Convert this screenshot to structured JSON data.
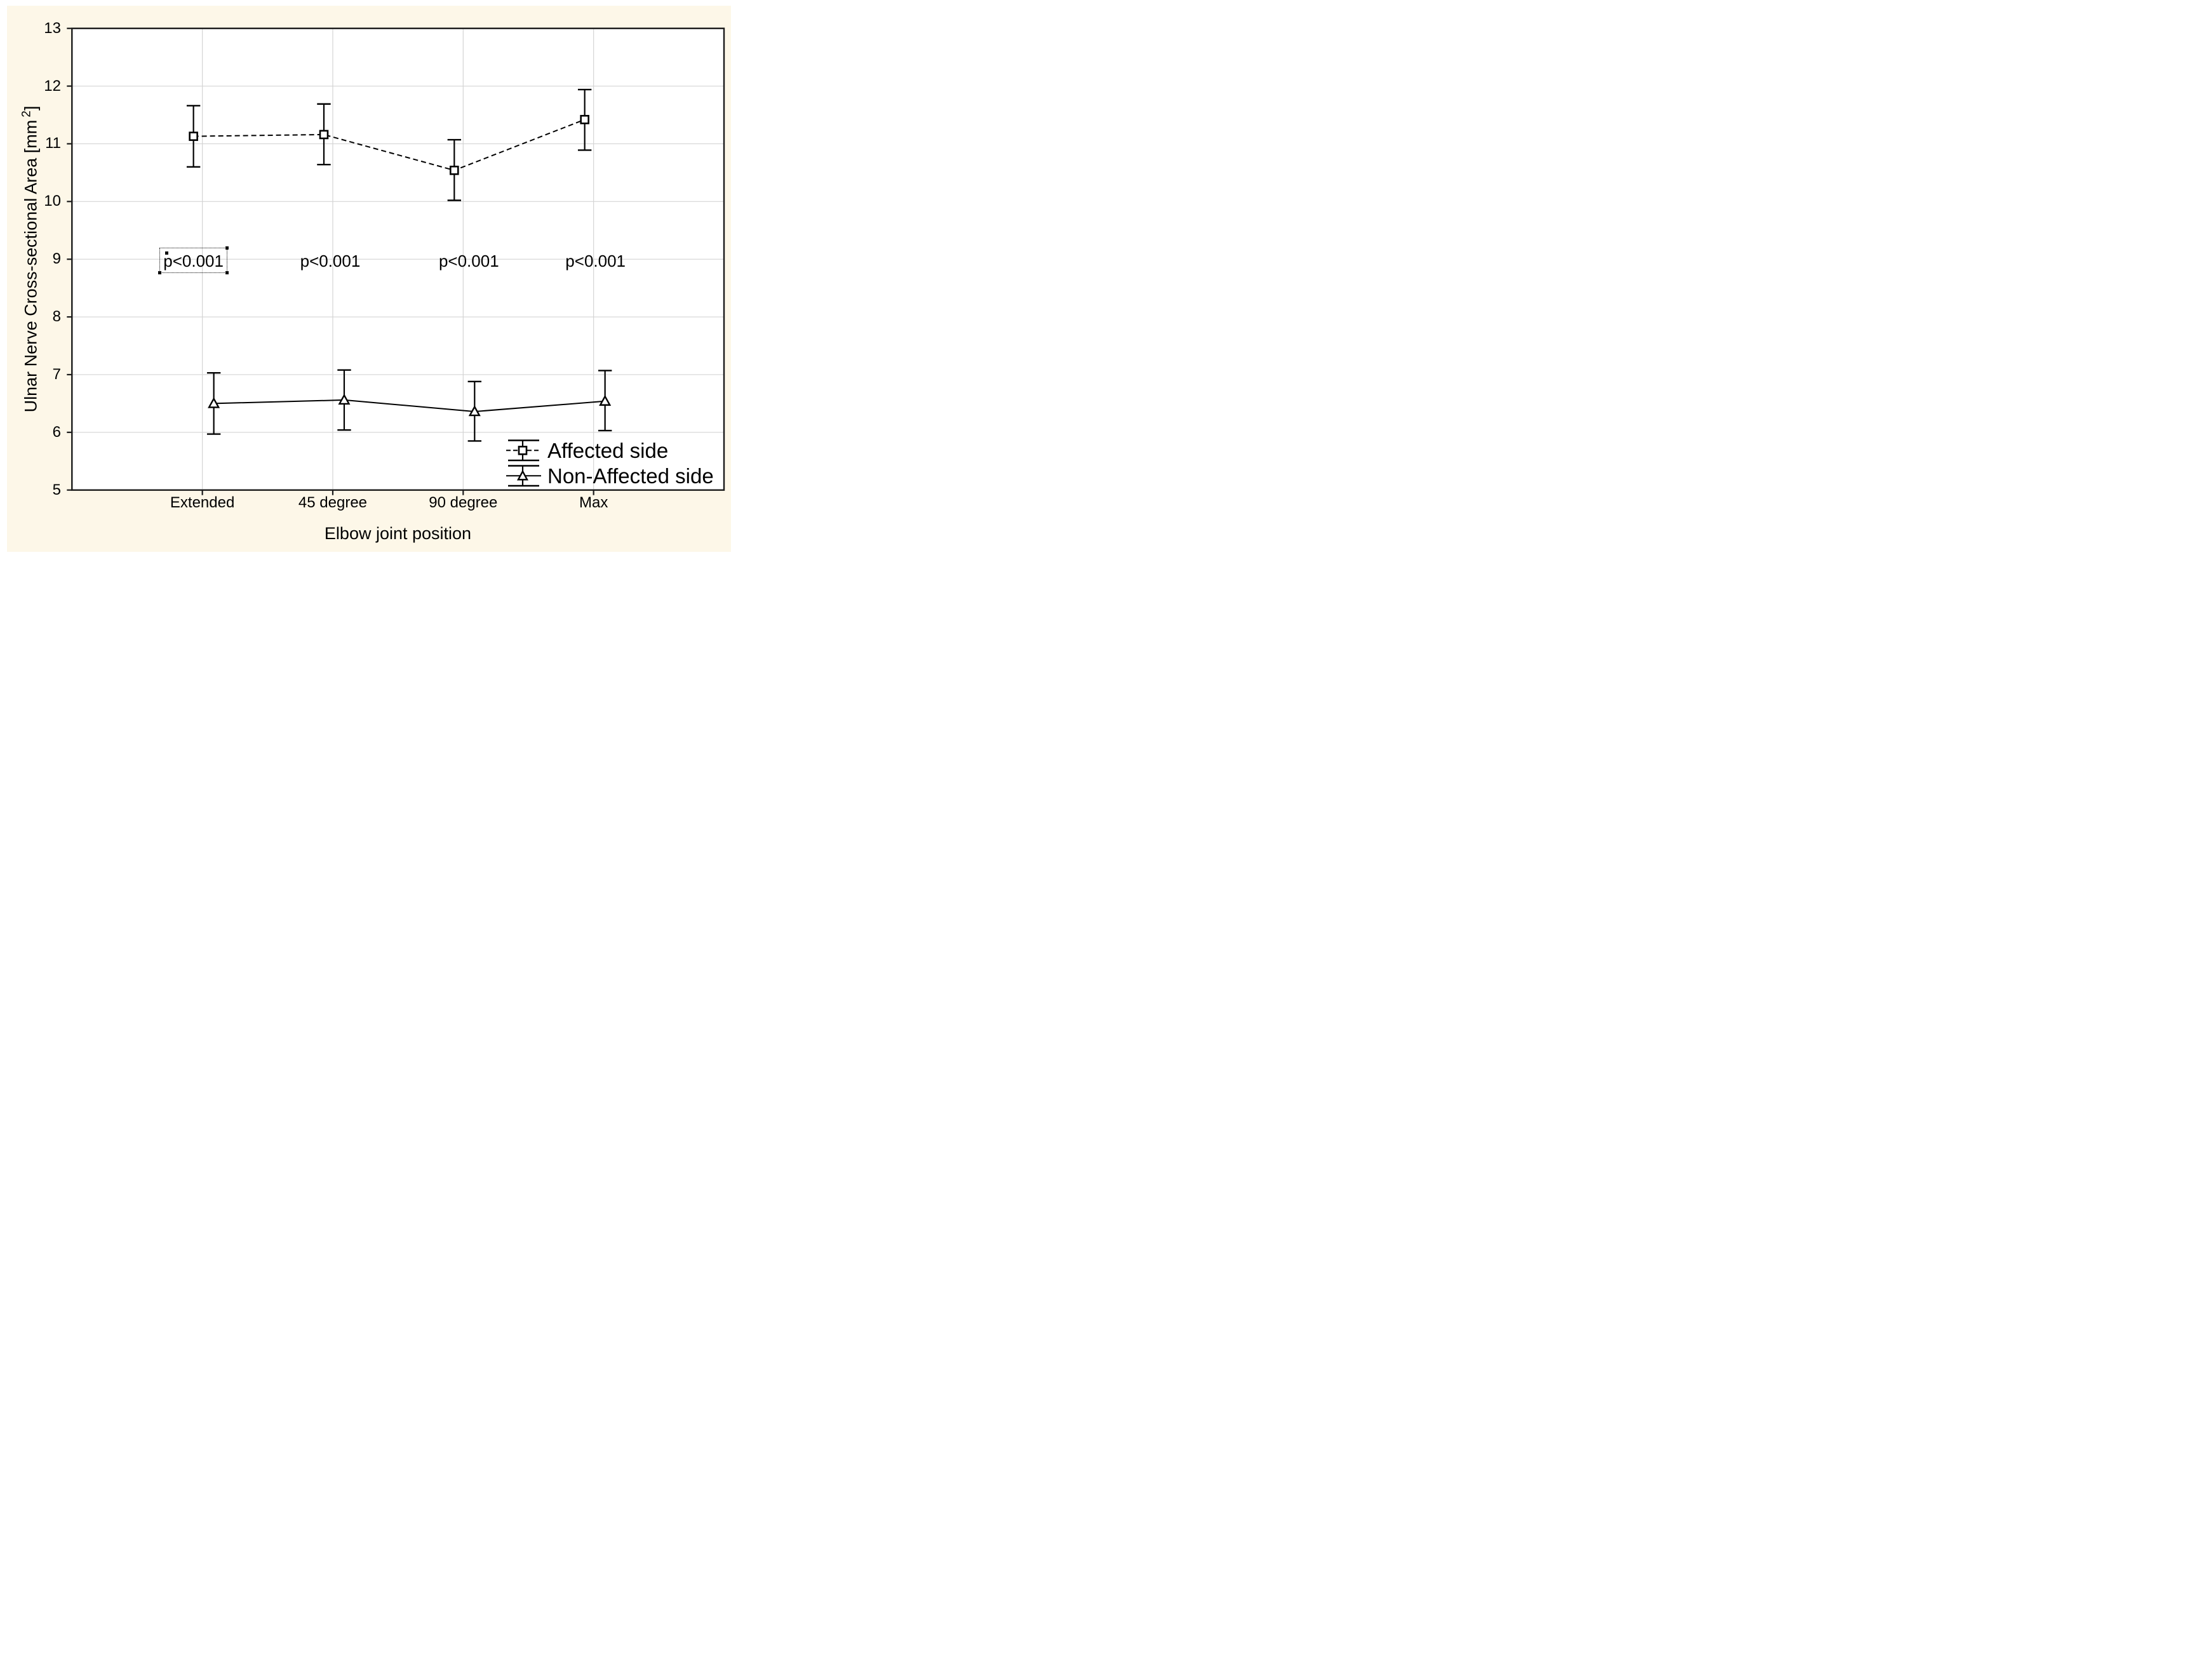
{
  "colors": {
    "page_background": "#ffffff",
    "paper_background": "#fdf7e8",
    "plot_background": "#ffffff",
    "grid": "#d4d4d4",
    "axis": "#1a1a1a",
    "text": "#000000"
  },
  "chart_data": {
    "type": "line",
    "title": "",
    "xlabel": "Elbow joint position",
    "ylabel": "Ulnar Nerve Cross-sectional Area [mm2]",
    "ylabel_prefix": "Ulnar Nerve Cross-sectional Area [mm",
    "ylabel_sup": "2",
    "ylabel_suffix": "]",
    "categories": [
      "Extended",
      "45 degree",
      "90 degree",
      "Max"
    ],
    "ylim": [
      5,
      13
    ],
    "yticks": [
      13,
      12,
      11,
      10,
      9,
      8,
      7,
      6,
      5
    ],
    "grid": true,
    "legend_position": "bottom-right-inside",
    "series": [
      {
        "name": "Affected side",
        "marker": "square",
        "line": "dashed",
        "values": [
          11.13,
          11.16,
          10.54,
          11.42
        ],
        "ci_low": [
          10.6,
          10.64,
          10.02,
          10.89
        ],
        "ci_high": [
          11.66,
          11.69,
          11.07,
          11.94
        ]
      },
      {
        "name": "Non-Affected side",
        "marker": "triangle",
        "line": "solid",
        "values": [
          6.5,
          6.56,
          6.36,
          6.54
        ],
        "ci_low": [
          5.97,
          6.04,
          5.85,
          6.03
        ],
        "ci_high": [
          7.03,
          7.08,
          6.88,
          7.07
        ]
      }
    ],
    "annotations": [
      {
        "text": "p<0.001",
        "x_index": 0,
        "y": 9,
        "selected": true
      },
      {
        "text": "p<0.001",
        "x_index": 1,
        "y": 9,
        "selected": false
      },
      {
        "text": "p<0.001",
        "x_index": 2,
        "y": 9,
        "selected": false
      },
      {
        "text": "p<0.001",
        "x_index": 3,
        "y": 9,
        "selected": false
      }
    ]
  }
}
